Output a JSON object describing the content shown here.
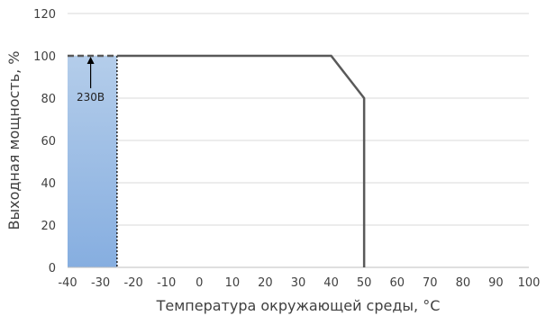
{
  "chart_data": {
    "type": "line",
    "xlabel": "Температура окружающей среды, °C",
    "ylabel": "Выходная мощность, %",
    "xlim": [
      -40,
      100
    ],
    "ylim": [
      0,
      120
    ],
    "x_ticks": [
      -40,
      -30,
      -20,
      -10,
      0,
      10,
      20,
      30,
      40,
      50,
      60,
      70,
      80,
      90,
      100
    ],
    "y_ticks": [
      0,
      20,
      40,
      60,
      80,
      100,
      120
    ],
    "x_tick_labels": [
      "-40",
      "-30",
      "-20",
      "-10",
      "0",
      "10",
      "20",
      "30",
      "40",
      "50",
      "60",
      "70",
      "80",
      "90",
      "100"
    ],
    "y_tick_labels": [
      "0",
      "20",
      "40",
      "60",
      "80",
      "100",
      "120"
    ],
    "grid": true,
    "legend": "none",
    "series": [
      {
        "x": [
          -25,
          40,
          50,
          50
        ],
        "y": [
          100,
          100,
          80,
          0
        ],
        "color": "#595959",
        "style": "solid"
      },
      {
        "x": [
          -40,
          -25
        ],
        "y": [
          100,
          100
        ],
        "color": "#595959",
        "style": "dashed"
      }
    ],
    "shaded_region": {
      "x": [
        -40,
        -25
      ],
      "y": [
        0,
        100
      ],
      "color_top": "#b4cdea",
      "color_bottom": "#86aee0"
    },
    "annotations": [
      {
        "text": "230В",
        "x": -33,
        "y": 100,
        "arrow": true
      }
    ]
  }
}
